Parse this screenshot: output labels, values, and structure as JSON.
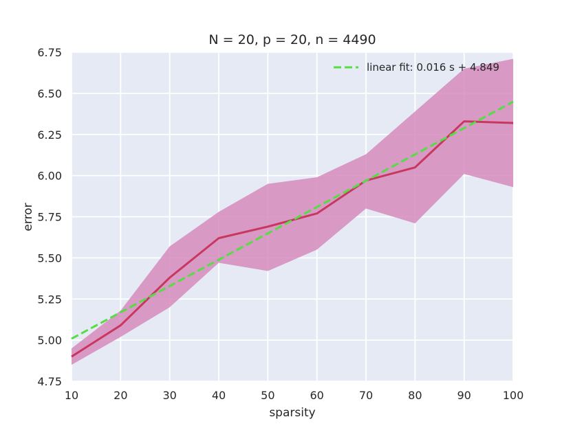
{
  "chart_data": {
    "type": "line",
    "title": "N = 20, p = 20, n = 4490",
    "xlabel": "sparsity",
    "ylabel": "error",
    "xlim": [
      10,
      100
    ],
    "ylim": [
      4.75,
      6.75
    ],
    "xticks": [
      10,
      20,
      30,
      40,
      50,
      60,
      70,
      80,
      90,
      100
    ],
    "yticks": [
      "4.75",
      "5.00",
      "5.25",
      "5.50",
      "5.75",
      "6.00",
      "6.25",
      "6.50",
      "6.75"
    ],
    "grid": true,
    "legend_position": "top-right",
    "x": [
      10,
      20,
      30,
      40,
      50,
      60,
      70,
      80,
      90,
      100
    ],
    "series": [
      {
        "values": [
          4.9,
          5.09,
          5.38,
          5.62,
          5.69,
          5.77,
          5.97,
          6.05,
          6.33,
          6.32
        ],
        "lower": [
          4.85,
          5.02,
          5.2,
          5.47,
          5.42,
          5.55,
          5.8,
          5.71,
          6.01,
          5.93
        ],
        "upper": [
          4.95,
          5.18,
          5.57,
          5.78,
          5.95,
          5.99,
          6.13,
          6.39,
          6.65,
          6.71
        ],
        "color": "#c8375f",
        "band_color": "#d68bbc"
      }
    ],
    "fit": {
      "name": "linear fit: 0.016 s + 4.849",
      "slope": 0.016,
      "intercept": 4.849,
      "color": "#55dd44"
    },
    "colors": {
      "plot_background": "#e5eaf5",
      "grid": "#ffffff",
      "text": "#262626"
    }
  }
}
